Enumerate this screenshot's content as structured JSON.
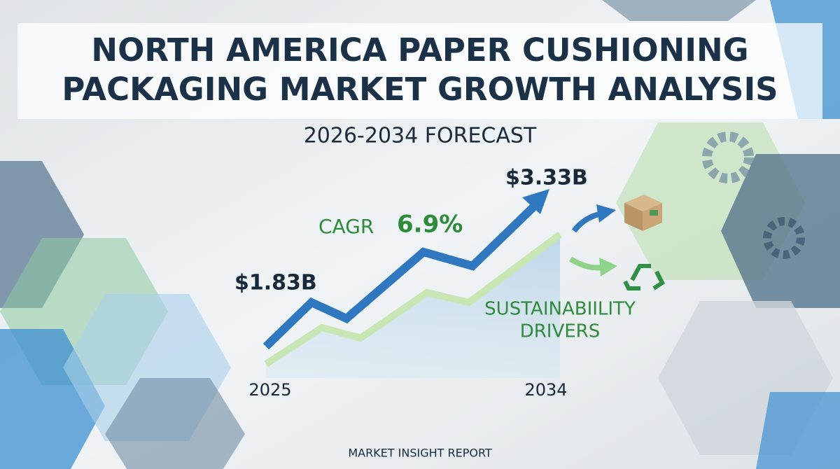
{
  "header": {
    "title_lines": [
      "NORTH AMERICA PAPER CUSHIONING",
      "PACKAGING MARKET GROWTH ANALYSIS"
    ],
    "subtitle": "2026-2034 FORECAST"
  },
  "graphic": {
    "start_value": "$1.83B",
    "end_value": "$3.33B",
    "cagr_label": "CAGR",
    "cagr_value": "6.9%",
    "driver_lines": [
      "SUSTAINABIILITY",
      "DRIVERS"
    ],
    "start_year": "2025",
    "end_year": "2034"
  },
  "footer": {
    "text": "MARKET INSIGHT REPORT"
  }
}
